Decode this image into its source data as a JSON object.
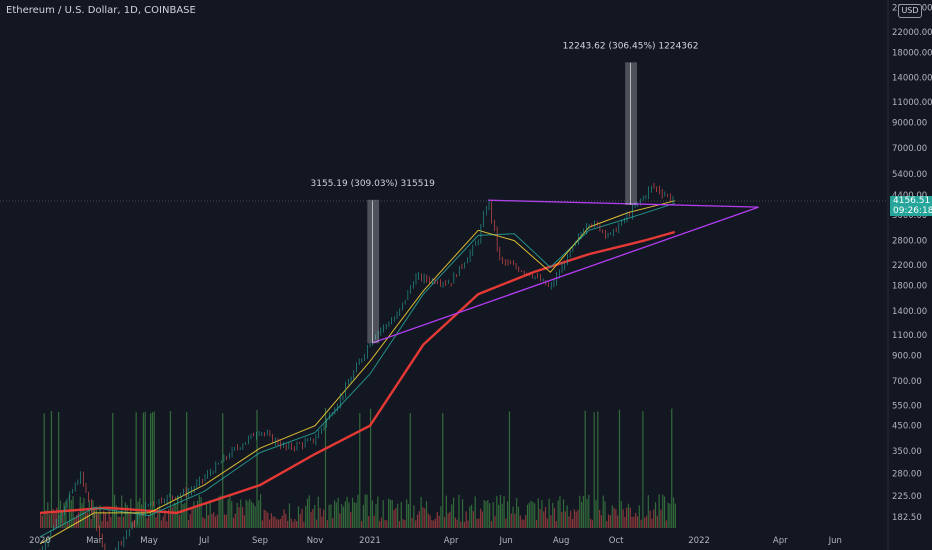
{
  "header": {
    "symbol_title": "Ethereum / U.S. Dollar, 1D, COINBASE",
    "currency": "USD"
  },
  "price_tag": {
    "price": "4156.51",
    "countdown": "09:26:18"
  },
  "chart_data": {
    "type": "line",
    "scale": "log",
    "x_ticks": [
      "2020",
      "Mar",
      "May",
      "Jul",
      "Sep",
      "Nov",
      "2021",
      "Apr",
      "Jun",
      "Aug",
      "Oct",
      "2022",
      "Apr",
      "Jun"
    ],
    "y_ticks": [
      "28000.00",
      "22000.00",
      "18000.00",
      "14000.00",
      "11000.00",
      "9000.00",
      "7000.00",
      "5400.00",
      "4400.00",
      "3600.00",
      "2800.00",
      "2200.00",
      "1800.00",
      "1400.00",
      "1100.00",
      "900.00",
      "700.00",
      "550.00",
      "450.00",
      "350.00",
      "280.00",
      "225.00",
      "182.50"
    ],
    "y_range": [
      160,
      30000
    ],
    "last_price": 4156.51,
    "annotations": [
      {
        "label": "3155.19 (309.03%) 315519",
        "from": 1020,
        "to": 4175
      },
      {
        "label": "12243.62 (306.45%) 1224362",
        "from": 3995,
        "to": 16240
      }
    ],
    "price": [
      [
        "2020-01-01",
        130
      ],
      [
        "2020-02-15",
        275
      ],
      [
        "2020-03-15",
        120
      ],
      [
        "2020-05-01",
        210
      ],
      [
        "2020-06-15",
        235
      ],
      [
        "2020-07-31",
        345
      ],
      [
        "2020-08-31",
        430
      ],
      [
        "2020-09-30",
        360
      ],
      [
        "2020-10-31",
        390
      ],
      [
        "2020-11-30",
        600
      ],
      [
        "2021-01-05",
        1100
      ],
      [
        "2021-01-31",
        1330
      ],
      [
        "2021-02-20",
        1950
      ],
      [
        "2021-03-31",
        1850
      ],
      [
        "2021-04-30",
        2770
      ],
      [
        "2021-05-12",
        4200
      ],
      [
        "2021-05-25",
        2300
      ],
      [
        "2021-06-30",
        2000
      ],
      [
        "2021-07-20",
        1750
      ],
      [
        "2021-08-31",
        3400
      ],
      [
        "2021-09-25",
        2950
      ],
      [
        "2021-10-31",
        4300
      ],
      [
        "2021-11-10",
        4800
      ],
      [
        "2021-12-05",
        4156.51
      ]
    ],
    "series": [
      {
        "type": "moving-average",
        "color": "#e53935",
        "values": [
          [
            "2020-01-01",
            190
          ],
          [
            "2020-03-15",
            200
          ],
          [
            "2020-06-01",
            190
          ],
          [
            "2020-09-01",
            250
          ],
          [
            "2020-11-01",
            340
          ],
          [
            "2021-01-01",
            450
          ],
          [
            "2021-03-01",
            1000
          ],
          [
            "2021-05-01",
            1650
          ],
          [
            "2021-07-01",
            2050
          ],
          [
            "2021-09-01",
            2450
          ],
          [
            "2021-11-01",
            2800
          ],
          [
            "2021-12-05",
            3050
          ]
        ]
      },
      {
        "type": "moving-average",
        "color": "#26a69a",
        "values": [
          [
            "2020-01-01",
            150
          ],
          [
            "2020-03-01",
            200
          ],
          [
            "2020-05-01",
            185
          ],
          [
            "2020-07-01",
            235
          ],
          [
            "2020-09-01",
            345
          ],
          [
            "2020-11-01",
            420
          ],
          [
            "2021-01-01",
            750
          ],
          [
            "2021-03-01",
            1650
          ],
          [
            "2021-05-01",
            2950
          ],
          [
            "2021-06-10",
            3000
          ],
          [
            "2021-07-20",
            2150
          ],
          [
            "2021-09-01",
            3100
          ],
          [
            "2021-10-15",
            3500
          ],
          [
            "2021-12-05",
            4050
          ]
        ]
      },
      {
        "type": "moving-average",
        "color": "#fdd835",
        "values": [
          [
            "2020-01-01",
            140
          ],
          [
            "2020-03-01",
            190
          ],
          [
            "2020-05-01",
            190
          ],
          [
            "2020-07-01",
            250
          ],
          [
            "2020-09-01",
            360
          ],
          [
            "2020-11-01",
            450
          ],
          [
            "2021-01-01",
            850
          ],
          [
            "2021-03-01",
            1700
          ],
          [
            "2021-05-01",
            3100
          ],
          [
            "2021-06-10",
            2800
          ],
          [
            "2021-07-20",
            2050
          ],
          [
            "2021-09-01",
            3200
          ],
          [
            "2021-10-15",
            3700
          ],
          [
            "2021-12-05",
            4150
          ]
        ]
      }
    ],
    "trendlines": [
      {
        "color": "#b23cf0",
        "points": [
          [
            "2021-05-12",
            4175
          ],
          [
            "2022-03-08",
            3900
          ]
        ]
      },
      {
        "color": "#b23cf0",
        "points": [
          [
            "2021-01-04",
            1020
          ],
          [
            "2022-03-08",
            3900
          ]
        ]
      }
    ],
    "volume_color_up": "#4caf50",
    "volume_color_down": "#ef5350"
  }
}
